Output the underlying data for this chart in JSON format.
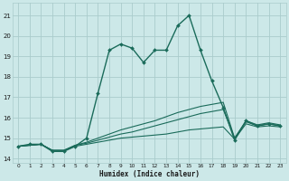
{
  "xlabel": "Humidex (Indice chaleur)",
  "bg_color": "#cce8e8",
  "grid_color": "#aacccc",
  "line_color": "#1a6b5a",
  "xlim": [
    -0.5,
    23.5
  ],
  "ylim": [
    13.8,
    21.6
  ],
  "yticks": [
    14,
    15,
    16,
    17,
    18,
    19,
    20,
    21
  ],
  "xticks": [
    0,
    1,
    2,
    3,
    4,
    5,
    6,
    7,
    8,
    9,
    10,
    11,
    12,
    13,
    14,
    15,
    16,
    17,
    18,
    19,
    20,
    21,
    22,
    23
  ],
  "lines": [
    {
      "x": [
        0,
        1,
        2,
        3,
        4,
        5,
        6,
        7,
        8,
        9,
        10,
        11,
        12,
        13,
        14,
        15,
        16,
        17,
        18,
        19,
        20,
        21,
        22,
        23
      ],
      "y": [
        14.6,
        14.7,
        14.7,
        14.35,
        14.35,
        14.6,
        15.0,
        17.2,
        19.3,
        19.6,
        19.4,
        18.7,
        19.3,
        19.3,
        20.5,
        21.0,
        19.3,
        17.8,
        16.5,
        14.9,
        15.85,
        15.6,
        15.7,
        15.6
      ],
      "lw": 1.0,
      "marker": true
    },
    {
      "x": [
        0,
        1,
        2,
        3,
        4,
        5,
        6,
        7,
        8,
        9,
        10,
        11,
        12,
        13,
        14,
        15,
        16,
        17,
        18,
        19,
        20,
        21,
        22,
        23
      ],
      "y": [
        14.6,
        14.65,
        14.7,
        14.4,
        14.4,
        14.6,
        14.7,
        14.8,
        14.9,
        15.0,
        15.05,
        15.1,
        15.15,
        15.2,
        15.3,
        15.4,
        15.45,
        15.5,
        15.55,
        14.95,
        15.7,
        15.55,
        15.6,
        15.55
      ],
      "lw": 0.8,
      "marker": false
    },
    {
      "x": [
        0,
        1,
        2,
        3,
        4,
        5,
        6,
        7,
        8,
        9,
        10,
        11,
        12,
        13,
        14,
        15,
        16,
        17,
        18,
        19,
        20,
        21,
        22,
        23
      ],
      "y": [
        14.6,
        14.65,
        14.7,
        14.4,
        14.4,
        14.65,
        14.75,
        14.9,
        15.05,
        15.2,
        15.3,
        15.45,
        15.6,
        15.75,
        15.9,
        16.05,
        16.2,
        16.3,
        16.4,
        15.0,
        15.8,
        15.6,
        15.7,
        15.6
      ],
      "lw": 0.8,
      "marker": false
    },
    {
      "x": [
        0,
        1,
        2,
        3,
        4,
        5,
        6,
        7,
        8,
        9,
        10,
        11,
        12,
        13,
        14,
        15,
        16,
        17,
        18,
        19,
        20,
        21,
        22,
        23
      ],
      "y": [
        14.6,
        14.65,
        14.7,
        14.4,
        14.4,
        14.65,
        14.8,
        15.0,
        15.2,
        15.4,
        15.55,
        15.7,
        15.85,
        16.05,
        16.25,
        16.4,
        16.55,
        16.65,
        16.75,
        15.0,
        15.85,
        15.65,
        15.75,
        15.65
      ],
      "lw": 0.8,
      "marker": false
    }
  ]
}
